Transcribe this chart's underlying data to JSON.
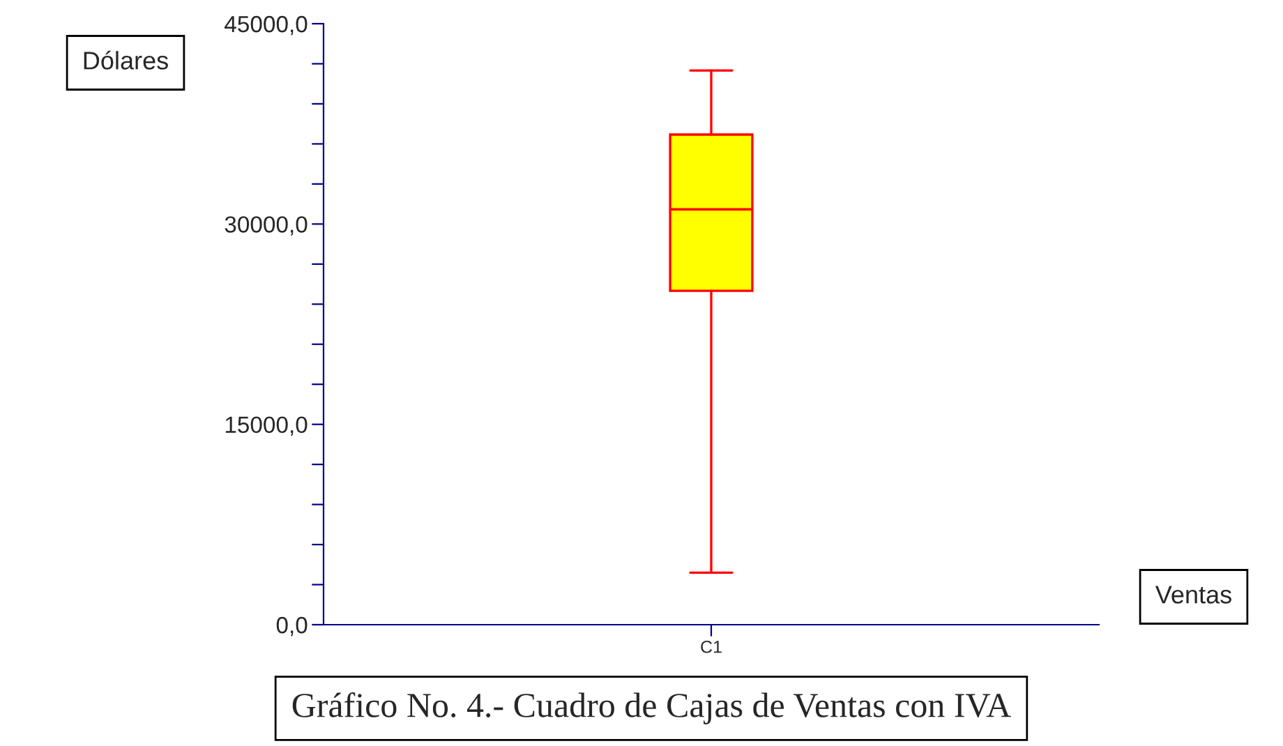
{
  "chart_data": {
    "type": "box",
    "title": "Gráfico No. 4.- Cuadro de Cajas de Ventas con IVA",
    "xlabel": "Ventas",
    "ylabel": "Dólares",
    "categories": [
      "C1"
    ],
    "boxes": [
      {
        "low": 3900,
        "q1": 25000,
        "median": 31100,
        "q3": 36700,
        "high": 41500
      }
    ],
    "colors": [
      "#ffff00"
    ],
    "ylim": [
      0,
      45000
    ],
    "yticks": [
      {
        "value": 0,
        "label": "0,0"
      },
      {
        "value": 3000,
        "label": null
      },
      {
        "value": 6000,
        "label": null
      },
      {
        "value": 9000,
        "label": null
      },
      {
        "value": 12000,
        "label": null
      },
      {
        "value": 15000,
        "label": "15000,0"
      },
      {
        "value": 18000,
        "label": null
      },
      {
        "value": 21000,
        "label": null
      },
      {
        "value": 24000,
        "label": null
      },
      {
        "value": 27000,
        "label": null
      },
      {
        "value": 30000,
        "label": "30000,0"
      },
      {
        "value": 33000,
        "label": null
      },
      {
        "value": 36000,
        "label": null
      },
      {
        "value": 39000,
        "label": null
      },
      {
        "value": 42000,
        "label": null
      },
      {
        "value": 45000,
        "label": "45000,0"
      }
    ]
  }
}
